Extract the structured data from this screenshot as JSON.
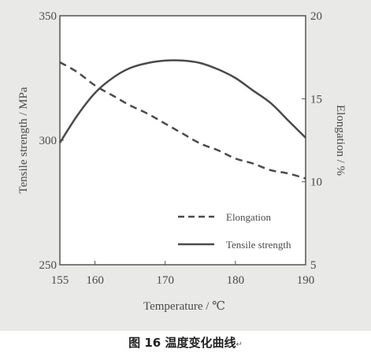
{
  "caption": {
    "fig_label": "图",
    "fig_number": "16",
    "text": "温度变化曲线",
    "mark": "↵"
  },
  "chart_data": {
    "type": "line",
    "xlabel": "Temperature / ℃",
    "ylabel_left": "Tensile strength / MPa",
    "ylabel_right": "Elongation / %",
    "xlim": [
      155,
      190
    ],
    "ylim_left": [
      250,
      350
    ],
    "ylim_right": [
      5,
      20
    ],
    "x_ticks": [
      "155",
      "160",
      "170",
      "180",
      "190"
    ],
    "x_tick_values": [
      155,
      160,
      170,
      180,
      190
    ],
    "y_ticks_left": [
      "250",
      "300",
      "350"
    ],
    "y_tick_values_left": [
      250,
      300,
      350
    ],
    "y_ticks_right": [
      "5",
      "10",
      "15",
      "20"
    ],
    "y_tick_values_right": [
      5,
      10,
      15,
      20
    ],
    "legend_position": "lower-right",
    "series": [
      {
        "name": "Elongation",
        "axis": "right",
        "style": "dashed",
        "color": "#4a4a4a",
        "x": [
          155,
          157.5,
          160,
          162.5,
          165,
          167.5,
          170,
          172.5,
          175,
          177.5,
          180,
          182.5,
          185,
          187.5,
          190
        ],
        "y": [
          17.2,
          16.6,
          15.8,
          15.2,
          14.6,
          14.1,
          13.5,
          12.9,
          12.3,
          11.9,
          11.4,
          11.1,
          10.7,
          10.5,
          10.2
        ]
      },
      {
        "name": "Tensile strength",
        "axis": "left",
        "style": "solid",
        "color": "#4a4a4a",
        "x": [
          155,
          157.5,
          160,
          162.5,
          165,
          167.5,
          170,
          172.5,
          175,
          177.5,
          180,
          182.5,
          185,
          187.5,
          190
        ],
        "y": [
          299,
          310,
          319,
          325,
          329,
          331,
          332,
          332,
          331,
          328.5,
          325,
          320,
          315,
          308,
          301
        ]
      }
    ]
  }
}
